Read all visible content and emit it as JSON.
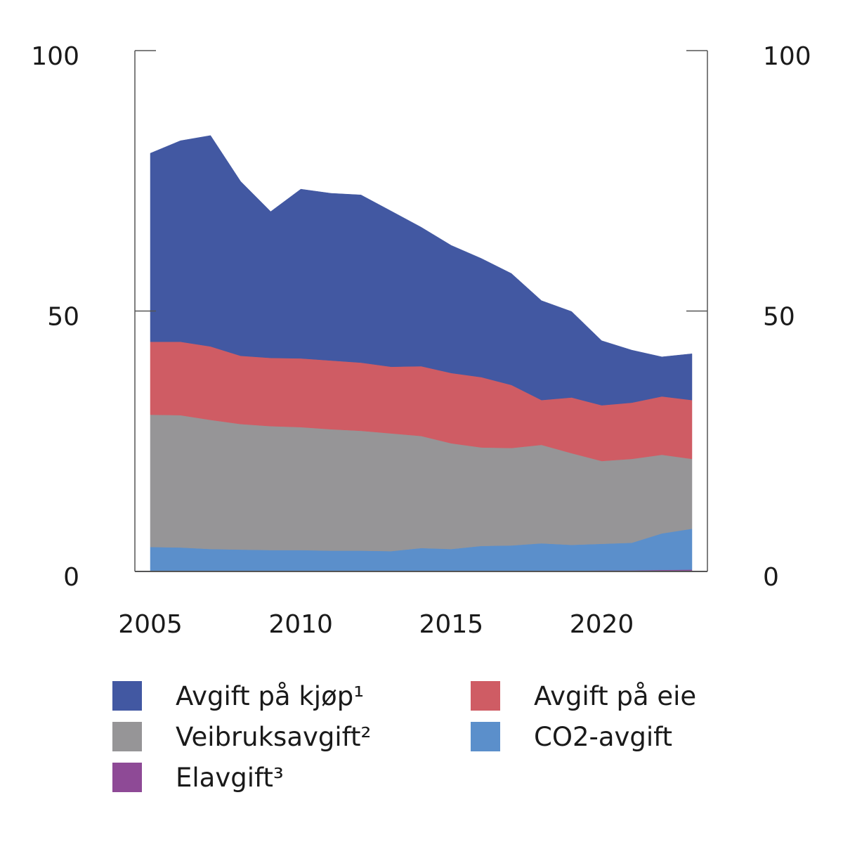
{
  "chart_data": {
    "type": "area",
    "stacked": true,
    "title": "",
    "xlabel": "",
    "ylabel": "",
    "x": [
      2005,
      2006,
      2007,
      2008,
      2009,
      2010,
      2011,
      2012,
      2013,
      2014,
      2015,
      2016,
      2017,
      2018,
      2019,
      2020,
      2021,
      2022,
      2023
    ],
    "xlim": [
      2004.5,
      2024
    ],
    "ylim": [
      0,
      100
    ],
    "x_ticks": [
      2005,
      2010,
      2015,
      2020
    ],
    "x_tick_labels": [
      "2005",
      "2010",
      "2015",
      "2020"
    ],
    "y_ticks": [
      0,
      50,
      100
    ],
    "y_tick_labels_left": [
      "0",
      "50",
      "100"
    ],
    "y_tick_labels_right": [
      "0",
      "50",
      "100"
    ],
    "grid": false,
    "legend_position": "bottom",
    "stack_order_bottom_to_top": [
      "Elavgift³",
      "CO2-avgift",
      "Veibruksavgift²",
      "Avgift på eie",
      "Avgift på kjøp¹"
    ],
    "series": [
      {
        "name": "Elavgift³",
        "color": "#8e4a96",
        "values": [
          0,
          0,
          0,
          0,
          0,
          0,
          0,
          0,
          0,
          0.05,
          0.05,
          0.05,
          0.1,
          0.15,
          0.15,
          0.2,
          0.2,
          0.3,
          0.35
        ]
      },
      {
        "name": "CO2-avgift",
        "color": "#5b8fcb",
        "values": [
          4.7,
          4.6,
          4.3,
          4.2,
          4.1,
          4.1,
          4.0,
          4.0,
          3.9,
          4.45,
          4.25,
          4.85,
          4.9,
          5.25,
          4.95,
          5.1,
          5.3,
          7.0,
          7.85
        ]
      },
      {
        "name": "Veibruksavgift²",
        "color": "#969597",
        "values": [
          25.4,
          25.4,
          24.8,
          24.1,
          23.8,
          23.6,
          23.3,
          23.0,
          22.6,
          21.5,
          20.3,
          18.9,
          18.7,
          18.9,
          17.6,
          15.9,
          16.1,
          15.1,
          13.4
        ]
      },
      {
        "name": "Avgift på eie",
        "color": "#cf5c64",
        "values": [
          14.0,
          14.1,
          14.1,
          13.1,
          13.1,
          13.2,
          13.2,
          13.1,
          12.8,
          13.4,
          13.5,
          13.5,
          12.1,
          8.6,
          10.7,
          10.7,
          10.8,
          11.2,
          11.3
        ]
      },
      {
        "name": "Avgift på kjøp¹",
        "color": "#4258a2",
        "values": [
          36.2,
          38.6,
          40.5,
          33.5,
          28.1,
          32.5,
          32.1,
          32.2,
          29.9,
          26.7,
          24.5,
          22.8,
          21.4,
          19.1,
          16.5,
          12.4,
          10.1,
          7.6,
          8.9
        ]
      }
    ]
  },
  "legend": [
    {
      "label": "Avgift på kjøp¹",
      "color": "#4258a2"
    },
    {
      "label": "Avgift på eie",
      "color": "#cf5c64"
    },
    {
      "label": "Veibruksavgift²",
      "color": "#969597"
    },
    {
      "label": "CO2-avgift",
      "color": "#5b8fcb"
    },
    {
      "label": "Elavgift³",
      "color": "#8e4a96"
    }
  ],
  "axis_color": "#555555"
}
